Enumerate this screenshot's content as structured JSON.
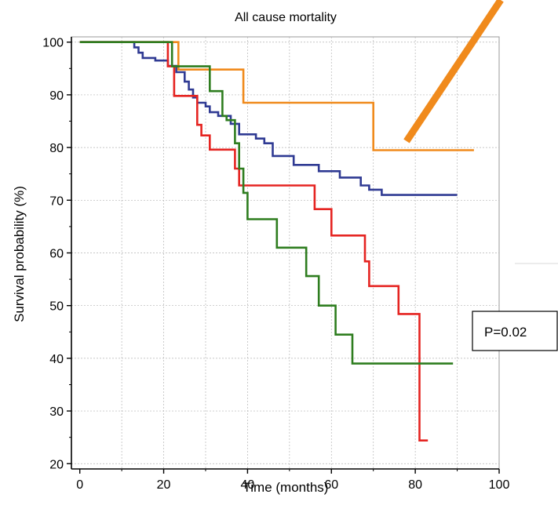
{
  "chart_data": {
    "type": "line",
    "step": true,
    "title": "All cause mortality",
    "xlabel": "Time (months)",
    "ylabel": "Survival probability (%)",
    "xlim": [
      -2,
      100
    ],
    "ylim": [
      19,
      101
    ],
    "xticks": [
      0,
      20,
      40,
      60,
      80,
      100
    ],
    "yticks": [
      20,
      30,
      40,
      50,
      60,
      70,
      80,
      90,
      100
    ],
    "grid": true,
    "annotation": "P=0.02",
    "colors": {
      "orange": "#f08a1c",
      "blue": "#2f3a93",
      "red": "#e52421",
      "green": "#2e7d1f"
    },
    "series": [
      {
        "color": "orange",
        "points": [
          [
            0,
            100
          ],
          [
            23.5,
            100
          ],
          [
            23.5,
            94.8
          ],
          [
            39,
            94.8
          ],
          [
            39,
            88.5
          ],
          [
            70,
            88.5
          ],
          [
            70,
            79.5
          ],
          [
            94,
            79.5
          ]
        ]
      },
      {
        "color": "blue",
        "points": [
          [
            0,
            100
          ],
          [
            13,
            100
          ],
          [
            13,
            99
          ],
          [
            14,
            99
          ],
          [
            14,
            98
          ],
          [
            15,
            98
          ],
          [
            15,
            97
          ],
          [
            18,
            97
          ],
          [
            18,
            96.5
          ],
          [
            21,
            96.5
          ],
          [
            21,
            95.5
          ],
          [
            23,
            95.5
          ],
          [
            23,
            94.3
          ],
          [
            25,
            94.3
          ],
          [
            25,
            92.5
          ],
          [
            26,
            92.5
          ],
          [
            26,
            91
          ],
          [
            27,
            91
          ],
          [
            27,
            89.5
          ],
          [
            28,
            89.5
          ],
          [
            28,
            88.5
          ],
          [
            30,
            88.5
          ],
          [
            30,
            87.8
          ],
          [
            31,
            87.8
          ],
          [
            31,
            86.7
          ],
          [
            33,
            86.7
          ],
          [
            33,
            86
          ],
          [
            36,
            86
          ],
          [
            36,
            84.5
          ],
          [
            38,
            84.5
          ],
          [
            38,
            82.5
          ],
          [
            42,
            82.5
          ],
          [
            42,
            81.7
          ],
          [
            44,
            81.7
          ],
          [
            44,
            80.8
          ],
          [
            46,
            80.8
          ],
          [
            46,
            78.4
          ],
          [
            51,
            78.4
          ],
          [
            51,
            76.7
          ],
          [
            57,
            76.7
          ],
          [
            57,
            75.5
          ],
          [
            62,
            75.5
          ],
          [
            62,
            74.3
          ],
          [
            67,
            74.3
          ],
          [
            67,
            72.8
          ],
          [
            69,
            72.8
          ],
          [
            69,
            72
          ],
          [
            72,
            72
          ],
          [
            72,
            71
          ],
          [
            90,
            71
          ]
        ]
      },
      {
        "color": "red",
        "points": [
          [
            0,
            100
          ],
          [
            21,
            100
          ],
          [
            21,
            95.4
          ],
          [
            22.5,
            95.4
          ],
          [
            22.5,
            89.8
          ],
          [
            28,
            89.8
          ],
          [
            28,
            84.3
          ],
          [
            29,
            84.3
          ],
          [
            29,
            82.3
          ],
          [
            31,
            82.3
          ],
          [
            31,
            79.6
          ],
          [
            37,
            79.6
          ],
          [
            37,
            76
          ],
          [
            38,
            76
          ],
          [
            38,
            72.8
          ],
          [
            56,
            72.8
          ],
          [
            56,
            68.3
          ],
          [
            60,
            68.3
          ],
          [
            60,
            63.3
          ],
          [
            68,
            63.3
          ],
          [
            68,
            58.4
          ],
          [
            69,
            58.4
          ],
          [
            69,
            53.7
          ],
          [
            76,
            53.7
          ],
          [
            76,
            48.4
          ],
          [
            81,
            48.4
          ],
          [
            81,
            24.4
          ],
          [
            83,
            24.4
          ]
        ]
      },
      {
        "color": "green",
        "points": [
          [
            0,
            100
          ],
          [
            22,
            100
          ],
          [
            22,
            95.4
          ],
          [
            31,
            95.4
          ],
          [
            31,
            90.7
          ],
          [
            34,
            90.7
          ],
          [
            34,
            86
          ],
          [
            35,
            86
          ],
          [
            35,
            85.2
          ],
          [
            37,
            85.2
          ],
          [
            37,
            80.8
          ],
          [
            38,
            80.8
          ],
          [
            38,
            76
          ],
          [
            39,
            76
          ],
          [
            39,
            71.4
          ],
          [
            40,
            71.4
          ],
          [
            40,
            66.4
          ],
          [
            47,
            66.4
          ],
          [
            47,
            61
          ],
          [
            54,
            61
          ],
          [
            54,
            55.6
          ],
          [
            57,
            55.6
          ],
          [
            57,
            50
          ],
          [
            61,
            50
          ],
          [
            61,
            44.5
          ],
          [
            65,
            44.5
          ],
          [
            65,
            39
          ],
          [
            89,
            39
          ]
        ]
      }
    ]
  }
}
